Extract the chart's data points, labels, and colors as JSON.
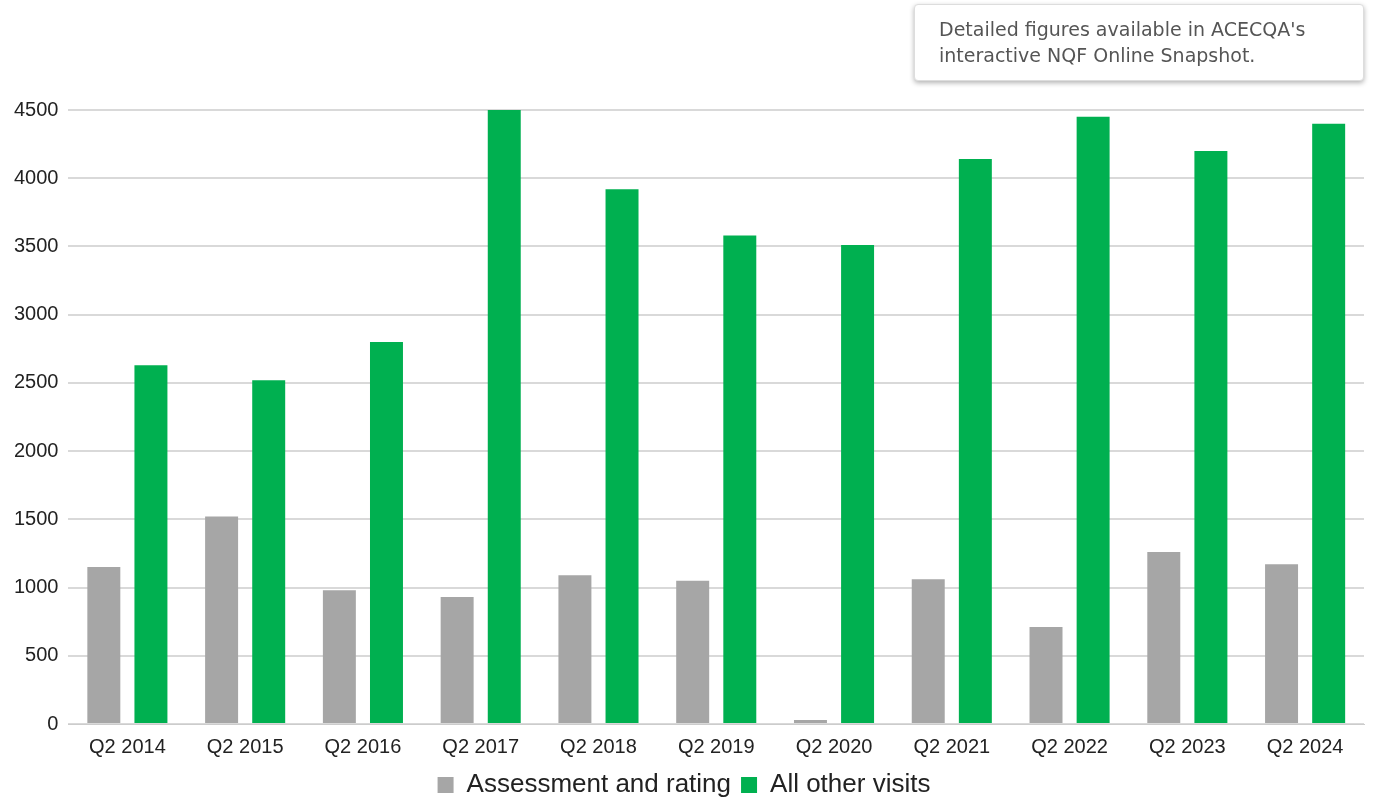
{
  "chart_data": {
    "type": "bar",
    "categories": [
      "Q2 2014",
      "Q2 2015",
      "Q2 2016",
      "Q2 2017",
      "Q2 2018",
      "Q2 2019",
      "Q2 2020",
      "Q2 2021",
      "Q2 2022",
      "Q2 2023",
      "Q2 2024"
    ],
    "series": [
      {
        "name": "Assessment and rating",
        "color": "#a6a6a6",
        "values": [
          1150,
          1520,
          980,
          930,
          1090,
          1050,
          30,
          1060,
          710,
          1260,
          1170
        ]
      },
      {
        "name": "All other visits",
        "color": "#00b050",
        "values": [
          2630,
          2520,
          2800,
          4500,
          3920,
          3580,
          3510,
          4140,
          4450,
          4200,
          4400
        ]
      }
    ],
    "ylim": [
      0,
      4500
    ],
    "yticks": [
      0,
      500,
      1000,
      1500,
      2000,
      2500,
      3000,
      3500,
      4000,
      4500
    ],
    "grid": "y",
    "legend": "bottom",
    "annotations": [
      "Detailed figures available in ACECQA's interactive NQF Online Snapshot."
    ]
  }
}
